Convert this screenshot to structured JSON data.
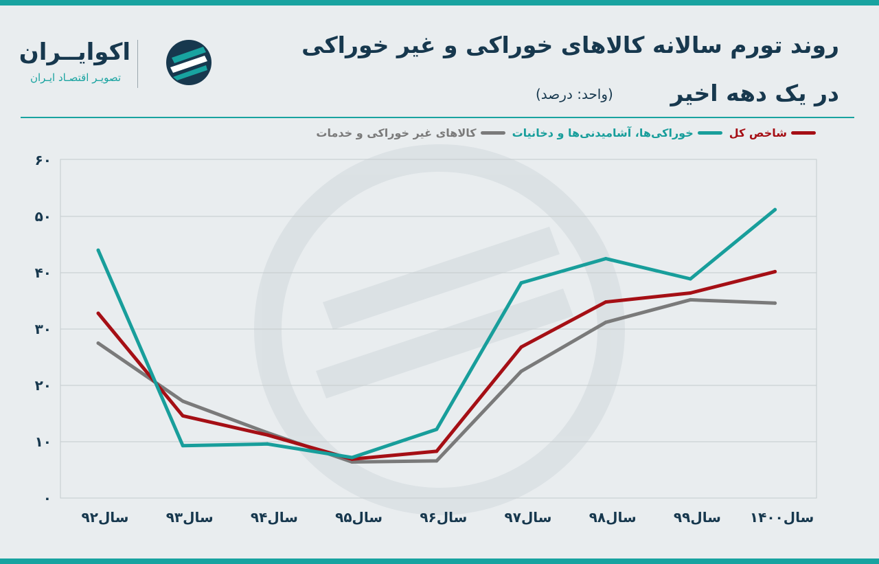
{
  "title": {
    "line1": "روند تورم سالانه کالاهای خوراکی و غیر خوراکی",
    "line2": "در یک دهه اخیر",
    "unit": "(واحد: درصد)"
  },
  "brand": {
    "name": "اکوایــران",
    "tagline": "تصویـر اقتصـاد ایـران"
  },
  "colors": {
    "accent": "#18a3a0",
    "title": "#17384e",
    "total": "#a50f15",
    "food": "#189e9b",
    "nonfood": "#7a7a7a"
  },
  "chart_data": {
    "type": "line",
    "categories": [
      "سال۹۲",
      "سال۹۳",
      "سال۹۴",
      "سال۹۵",
      "سال۹۶",
      "سال۹۷",
      "سال۹۸",
      "سال۹۹",
      "سال۱۴۰۰"
    ],
    "series": [
      {
        "name": "شاخص کل",
        "color": "#a50f15",
        "values": [
          32.8,
          14.6,
          11.2,
          6.9,
          8.3,
          26.8,
          34.8,
          36.4,
          40.2
        ]
      },
      {
        "name": "خوراکی‌ها، آشامیدنی‌ها و دخانیات",
        "color": "#189e9b",
        "values": [
          44.0,
          9.3,
          9.6,
          7.2,
          12.2,
          38.2,
          42.5,
          38.9,
          51.2
        ]
      },
      {
        "name": "کالاهای غیر خوراکی و خدمات",
        "color": "#7a7a7a",
        "values": [
          27.5,
          17.2,
          11.6,
          6.4,
          6.6,
          22.5,
          31.2,
          35.2,
          34.6
        ]
      }
    ],
    "yticks": [
      "۰",
      "۱۰",
      "۲۰",
      "۳۰",
      "۴۰",
      "۵۰",
      "۶۰"
    ],
    "ylim": [
      0,
      60
    ],
    "grid": true,
    "legend": "top"
  }
}
